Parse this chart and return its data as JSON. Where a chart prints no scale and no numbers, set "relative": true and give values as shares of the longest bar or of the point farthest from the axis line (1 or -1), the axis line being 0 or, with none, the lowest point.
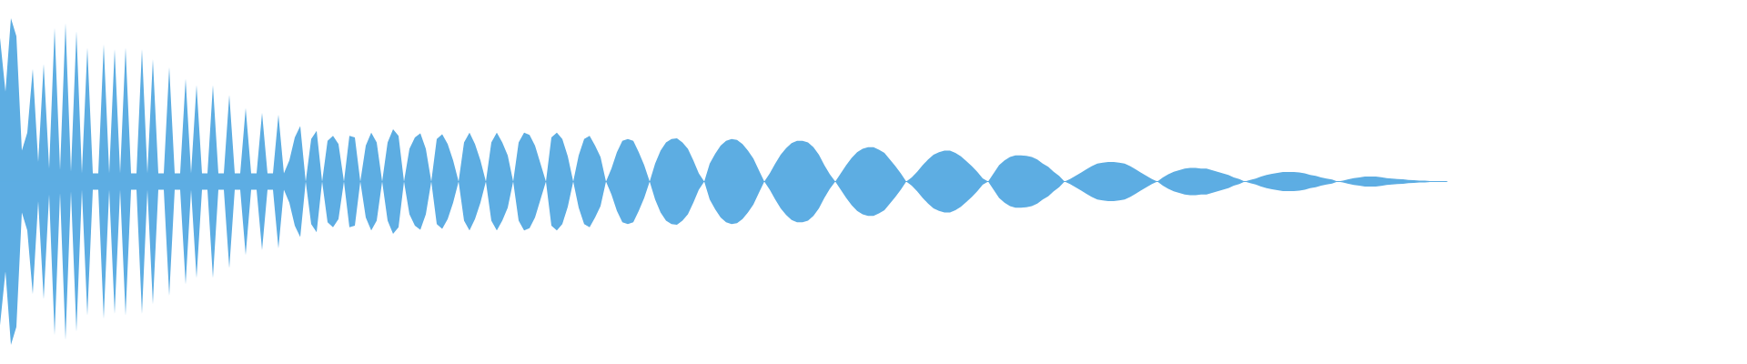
{
  "chart_data": {
    "type": "area",
    "relative": true,
    "categories": [
      null,
      null,
      null,
      null,
      null,
      null,
      null,
      null,
      null,
      null,
      null,
      null,
      null,
      null,
      null,
      null,
      null,
      null,
      null,
      null,
      null,
      null,
      null,
      null,
      null,
      null,
      null,
      null,
      null,
      null,
      null,
      null,
      null,
      null,
      null,
      null,
      null,
      null,
      null,
      null,
      null,
      null,
      null,
      null,
      null,
      null,
      null,
      null,
      null,
      null,
      null,
      null,
      null,
      null,
      null,
      null,
      null,
      null,
      null,
      null,
      null,
      null,
      null,
      null,
      null,
      null,
      null,
      null,
      null,
      null,
      null,
      null,
      null,
      null,
      null,
      null,
      null,
      null,
      null,
      null,
      null,
      null,
      null,
      null,
      null,
      null,
      null,
      null,
      null,
      null,
      null,
      null,
      null,
      null,
      null,
      null,
      null,
      null,
      null,
      null,
      null,
      null,
      null,
      null,
      null,
      null,
      null,
      null,
      null,
      null,
      null,
      null,
      null,
      null,
      null,
      null,
      null,
      null,
      null,
      null,
      null,
      null,
      null,
      null,
      null,
      null,
      null,
      null,
      null,
      null,
      null,
      null,
      null,
      null,
      null,
      null,
      null,
      null,
      null,
      null,
      null,
      null,
      null,
      null,
      null,
      null,
      null,
      null,
      null,
      null,
      null,
      null,
      null,
      null,
      null,
      null,
      null,
      null,
      null,
      null,
      null,
      null,
      null,
      null,
      null,
      null,
      null,
      null,
      null,
      null,
      null,
      null,
      null,
      null,
      null,
      null,
      null,
      null,
      null,
      null,
      null,
      null,
      null,
      null,
      null,
      null,
      null,
      null,
      null,
      null,
      null,
      null,
      null,
      null,
      null,
      null,
      null,
      null,
      null,
      null,
      null,
      null,
      null,
      null,
      null,
      null,
      null,
      null,
      null,
      null,
      null,
      null,
      null,
      null,
      null,
      null,
      null,
      null,
      null,
      null,
      null,
      null,
      null,
      null,
      null,
      null,
      null,
      null,
      null,
      null,
      null,
      null,
      null,
      null,
      null,
      null,
      null,
      null,
      null,
      null,
      null,
      null,
      null,
      null,
      null,
      null,
      null,
      null,
      null,
      null,
      null,
      null,
      null,
      null,
      null,
      null,
      null,
      null,
      null,
      null,
      null,
      null,
      null,
      null,
      null,
      null
    ],
    "ref_lines": [
      {
        "axis": "y",
        "value": 0,
        "color": "#5dade2"
      }
    ],
    "series": [
      {
        "color": "#5dade2",
        "values": [
          0.88,
          0.55,
          1.0,
          0.89,
          0.19,
          0.3,
          0.69,
          0.12,
          0.72,
          0.08,
          0.94,
          0.07,
          0.97,
          0.06,
          0.92,
          0.05,
          0.82,
          0.05,
          0.05,
          0.84,
          0.05,
          0.81,
          0.05,
          0.82,
          0.05,
          0.05,
          0.81,
          0.05,
          0.75,
          0.05,
          0.05,
          0.7,
          0.05,
          0.05,
          0.63,
          0.05,
          0.59,
          0.05,
          0.05,
          0.59,
          0.05,
          0.05,
          0.53,
          0.05,
          0.05,
          0.45,
          0.05,
          0.05,
          0.42,
          0.05,
          0.05,
          0.41,
          0.05,
          0.13,
          0.27,
          0.34,
          0,
          0.26,
          0.31,
          0,
          0.25,
          0.28,
          0.23,
          0,
          0.28,
          0.27,
          0,
          0.22,
          0.3,
          0.24,
          0,
          0.24,
          0.32,
          0.28,
          0,
          0.2,
          0.27,
          0.295,
          0.2,
          0,
          0.26,
          0.29,
          0.23,
          0.13,
          0,
          0.24,
          0.3,
          0.23,
          0.13,
          0,
          0.24,
          0.3,
          0.24,
          0.16,
          0,
          0.24,
          0.3,
          0.285,
          0.22,
          0.11,
          0,
          0.27,
          0.3,
          0.26,
          0.155,
          0,
          0.16,
          0.26,
          0.28,
          0.22,
          0.15,
          0,
          0.08,
          0.18,
          0.25,
          0.26,
          0.25,
          0.18,
          0.1,
          0,
          0.11,
          0.19,
          0.24,
          0.26,
          0.265,
          0.24,
          0.2,
          0.13,
          0.05,
          0,
          0.11,
          0.17,
          0.22,
          0.25,
          0.26,
          0.255,
          0.23,
          0.19,
          0.14,
          0.07,
          0,
          0.05,
          0.11,
          0.165,
          0.205,
          0.235,
          0.25,
          0.25,
          0.24,
          0.21,
          0.165,
          0.1,
          0.045,
          0,
          0.05,
          0.1,
          0.145,
          0.18,
          0.2,
          0.21,
          0.21,
          0.195,
          0.175,
          0.135,
          0.095,
          0.05,
          0,
          0.025,
          0.06,
          0.1,
          0.135,
          0.165,
          0.18,
          0.19,
          0.19,
          0.175,
          0.155,
          0.125,
          0.095,
          0.06,
          0.02,
          0,
          0.05,
          0.1,
          0.13,
          0.15,
          0.16,
          0.16,
          0.157,
          0.15,
          0.135,
          0.11,
          0.09,
          0.06,
          0.035,
          0,
          0.015,
          0.035,
          0.055,
          0.075,
          0.095,
          0.11,
          0.115,
          0.12,
          0.12,
          0.115,
          0.11,
          0.095,
          0.075,
          0.055,
          0.035,
          0.015,
          0,
          0.025,
          0.045,
          0.06,
          0.07,
          0.08,
          0.083,
          0.083,
          0.08,
          0.08,
          0.07,
          0.06,
          0.05,
          0.04,
          0.025,
          0.015,
          0,
          0.01,
          0.018,
          0.03,
          0.04,
          0.047,
          0.053,
          0.058,
          0.058,
          0.058,
          0.056,
          0.05,
          0.04,
          0.035,
          0.025,
          0.018,
          0.012,
          0,
          0.005,
          0.014,
          0.021,
          0.025,
          0.031,
          0.031,
          0.031,
          0.027,
          0.021,
          0.018,
          0.016,
          0.014,
          0.01,
          0.008,
          0.005,
          0.005,
          0.003,
          0.003,
          0.003,
          0
        ]
      },
      {
        "color": "#5dade3",
        "values": [
          -0.88,
          -0.55,
          -1.0,
          -0.89,
          -0.19,
          -0.3,
          -0.69,
          -0.12,
          -0.72,
          -0.08,
          -0.94,
          -0.07,
          -0.97,
          -0.06,
          -0.92,
          -0.05,
          -0.82,
          -0.05,
          -0.05,
          -0.84,
          -0.05,
          -0.81,
          -0.05,
          -0.82,
          -0.05,
          -0.05,
          -0.81,
          -0.05,
          -0.75,
          -0.05,
          -0.05,
          -0.7,
          -0.05,
          -0.05,
          -0.63,
          -0.05,
          -0.59,
          -0.05,
          -0.05,
          -0.59,
          -0.05,
          -0.05,
          -0.53,
          -0.05,
          -0.05,
          -0.45,
          -0.05,
          -0.05,
          -0.42,
          -0.05,
          -0.05,
          -0.41,
          -0.05,
          -0.13,
          -0.27,
          -0.34,
          0,
          -0.26,
          -0.31,
          0,
          -0.25,
          -0.28,
          -0.23,
          0,
          -0.28,
          -0.27,
          0,
          -0.22,
          -0.3,
          -0.24,
          0,
          -0.24,
          -0.32,
          -0.28,
          0,
          -0.2,
          -0.27,
          -0.295,
          -0.2,
          0,
          -0.26,
          -0.29,
          -0.23,
          -0.13,
          0,
          -0.24,
          -0.3,
          -0.23,
          -0.13,
          0,
          -0.24,
          -0.3,
          -0.24,
          -0.16,
          0,
          -0.24,
          -0.3,
          -0.285,
          -0.22,
          -0.11,
          0,
          -0.27,
          -0.3,
          -0.26,
          -0.155,
          0,
          -0.16,
          -0.26,
          -0.28,
          -0.22,
          -0.15,
          0,
          -0.08,
          -0.18,
          -0.25,
          -0.26,
          -0.25,
          -0.18,
          -0.1,
          0,
          -0.11,
          -0.19,
          -0.24,
          -0.26,
          -0.265,
          -0.24,
          -0.2,
          -0.13,
          -0.05,
          0,
          -0.11,
          -0.17,
          -0.22,
          -0.25,
          -0.26,
          -0.255,
          -0.23,
          -0.19,
          -0.14,
          -0.07,
          0,
          -0.05,
          -0.11,
          -0.165,
          -0.205,
          -0.235,
          -0.25,
          -0.25,
          -0.24,
          -0.21,
          -0.165,
          -0.1,
          -0.045,
          0,
          -0.05,
          -0.1,
          -0.145,
          -0.18,
          -0.2,
          -0.21,
          -0.21,
          -0.195,
          -0.175,
          -0.135,
          -0.095,
          -0.05,
          0,
          -0.025,
          -0.06,
          -0.1,
          -0.135,
          -0.165,
          -0.18,
          -0.19,
          -0.19,
          -0.175,
          -0.155,
          -0.125,
          -0.095,
          -0.06,
          -0.02,
          0,
          -0.05,
          -0.1,
          -0.13,
          -0.15,
          -0.16,
          -0.16,
          -0.157,
          -0.15,
          -0.135,
          -0.11,
          -0.09,
          -0.06,
          -0.035,
          0,
          -0.015,
          -0.035,
          -0.055,
          -0.075,
          -0.095,
          -0.11,
          -0.115,
          -0.12,
          -0.12,
          -0.115,
          -0.11,
          -0.095,
          -0.075,
          -0.055,
          -0.035,
          -0.015,
          0,
          -0.025,
          -0.045,
          -0.06,
          -0.07,
          -0.08,
          -0.083,
          -0.083,
          -0.08,
          -0.08,
          -0.07,
          -0.06,
          -0.05,
          -0.04,
          -0.025,
          -0.015,
          0,
          -0.01,
          -0.018,
          -0.03,
          -0.04,
          -0.047,
          -0.053,
          -0.058,
          -0.058,
          -0.058,
          -0.056,
          -0.05,
          -0.04,
          -0.035,
          -0.025,
          -0.018,
          -0.012,
          0,
          -0.005,
          -0.014,
          -0.021,
          -0.025,
          -0.031,
          -0.031,
          -0.031,
          -0.027,
          -0.021,
          -0.018,
          -0.016,
          -0.014,
          -0.01,
          -0.008,
          -0.005,
          -0.005,
          -0.003,
          -0.003,
          -0.003,
          0
        ]
      }
    ]
  }
}
